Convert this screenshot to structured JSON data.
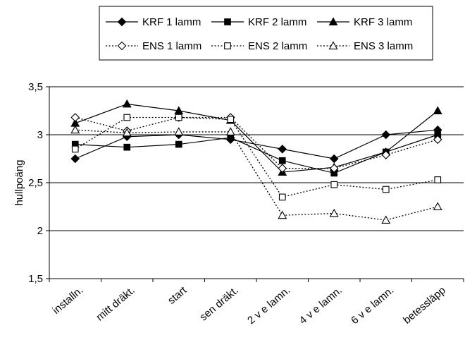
{
  "chart_data": {
    "type": "line",
    "title": "",
    "xlabel": "",
    "ylabel": "hullpoäng",
    "ylim": [
      1.5,
      3.5
    ],
    "yticks": [
      "1,5",
      "2",
      "2,5",
      "3",
      "3,5"
    ],
    "ytick_values": [
      1.5,
      2,
      2.5,
      3,
      3.5
    ],
    "categories": [
      "installn.",
      "mitt dräkt.",
      "start",
      "sen dräkt.",
      "2 v e lamn.",
      "4 v e lamn.",
      "6 v e lamn.",
      "betessläpp"
    ],
    "grid": "horizontal",
    "legend_position": "top",
    "series": [
      {
        "name": "KRF 1 lamm",
        "marker": "diamond",
        "filled": true,
        "dash": "solid",
        "x_index": [
          0,
          1,
          2,
          3,
          4,
          5,
          6,
          7
        ],
        "values": [
          2.75,
          2.98,
          3.0,
          2.95,
          2.85,
          2.75,
          3.0,
          3.05
        ]
      },
      {
        "name": "KRF 2 lamm",
        "marker": "square",
        "filled": true,
        "dash": "solid",
        "x_index": [
          0,
          1,
          2,
          3,
          4,
          5,
          6,
          7
        ],
        "values": [
          2.9,
          2.87,
          2.9,
          2.97,
          2.73,
          2.6,
          2.82,
          3.0
        ]
      },
      {
        "name": "KRF 3 lamm",
        "marker": "triangle",
        "filled": true,
        "dash": "solid",
        "x_index": [
          0,
          1,
          2,
          3,
          4,
          5,
          6,
          7
        ],
        "values": [
          3.12,
          3.32,
          3.25,
          3.15,
          2.61,
          2.66,
          2.82,
          3.25
        ]
      },
      {
        "name": "ENS 1 lamm",
        "marker": "diamond",
        "filled": false,
        "dash": "dotted",
        "x_index": [
          0,
          1,
          2,
          3,
          4,
          5,
          6,
          7
        ],
        "values": [
          3.18,
          3.04,
          3.18,
          3.18,
          2.65,
          2.65,
          2.79,
          2.95
        ]
      },
      {
        "name": "ENS 2 lamm",
        "marker": "square",
        "filled": false,
        "dash": "dotted",
        "x_index": [
          0,
          1,
          2,
          3,
          4,
          5,
          6,
          7
        ],
        "values": [
          2.85,
          3.18,
          3.18,
          3.16,
          2.35,
          2.48,
          2.43,
          2.53
        ]
      },
      {
        "name": "ENS 3 lamm",
        "marker": "triangle",
        "filled": false,
        "dash": "dotted",
        "x_index": [
          0,
          1,
          2,
          3,
          4,
          5,
          6,
          7
        ],
        "values": [
          3.05,
          3.02,
          3.03,
          3.03,
          2.16,
          2.18,
          2.11,
          2.25
        ]
      }
    ]
  }
}
